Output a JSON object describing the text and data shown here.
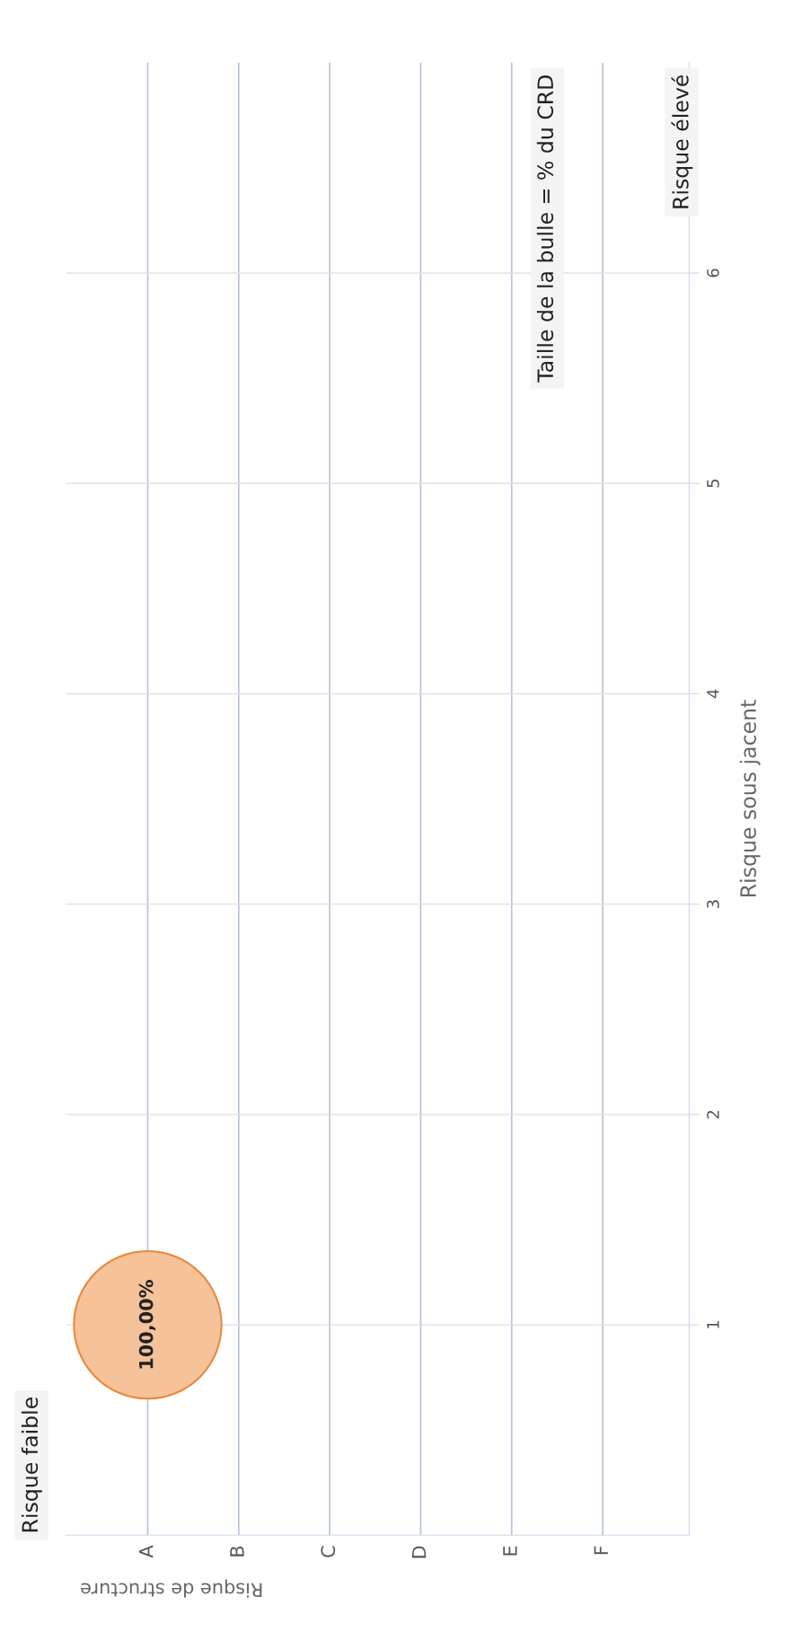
{
  "chart_data": {
    "type": "bubble",
    "categories": [
      "A",
      "B",
      "C",
      "D",
      "E",
      "F"
    ],
    "series": [
      {
        "color": "#f5c29a",
        "values": [
          1,
          null,
          null,
          null,
          null,
          null
        ],
        "sizes": [
          1,
          null,
          null,
          null,
          null,
          null
        ],
        "value_labels": [
          "100,00%",
          null,
          null,
          null,
          null,
          null
        ]
      }
    ],
    "xlabel": "Risque de structure",
    "ylabel": "Risque sous jacent",
    "ylim": [
      0,
      7
    ],
    "yticks": [
      1,
      2,
      3,
      4,
      5,
      6
    ],
    "annotations": [
      "Risque faible",
      "Risque élevé",
      "Taille de la bulle = % du CRD"
    ],
    "grid": true
  }
}
